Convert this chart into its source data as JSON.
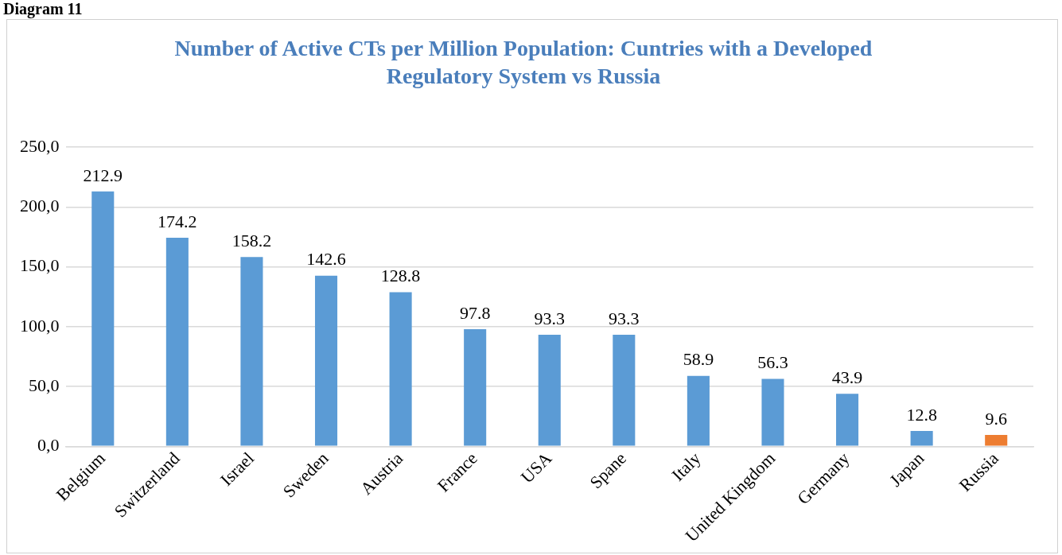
{
  "chart_data": {
    "type": "bar",
    "title": "Number of Active CTs per Million Population: Cuntries with a Developed Regulatory System vs Russia",
    "annotations": [
      "Diagram 11"
    ],
    "categories": [
      "Belgium",
      "Switzerland",
      "Israel",
      "Sweden",
      "Austria",
      "France",
      "USA",
      "Spane",
      "Italy",
      "United Kingdom",
      "Germany",
      "Japan",
      "Russia"
    ],
    "values": [
      212.9,
      174.2,
      158.2,
      142.6,
      128.8,
      97.8,
      93.3,
      93.3,
      58.9,
      56.3,
      43.9,
      12.8,
      9.6
    ],
    "colors": [
      "#5b9bd5",
      "#5b9bd5",
      "#5b9bd5",
      "#5b9bd5",
      "#5b9bd5",
      "#5b9bd5",
      "#5b9bd5",
      "#5b9bd5",
      "#5b9bd5",
      "#5b9bd5",
      "#5b9bd5",
      "#5b9bd5",
      "#ed7d31"
    ],
    "ylim": [
      0,
      250
    ],
    "yticks": [
      {
        "value": 0,
        "label": "0,0"
      },
      {
        "value": 50,
        "label": "50,0"
      },
      {
        "value": 100,
        "label": "100,0"
      },
      {
        "value": 150,
        "label": "150,0"
      },
      {
        "value": 200,
        "label": "200,0"
      },
      {
        "value": 250,
        "label": "250,0"
      }
    ],
    "grid": "y",
    "legend": false,
    "data_labels": true
  }
}
